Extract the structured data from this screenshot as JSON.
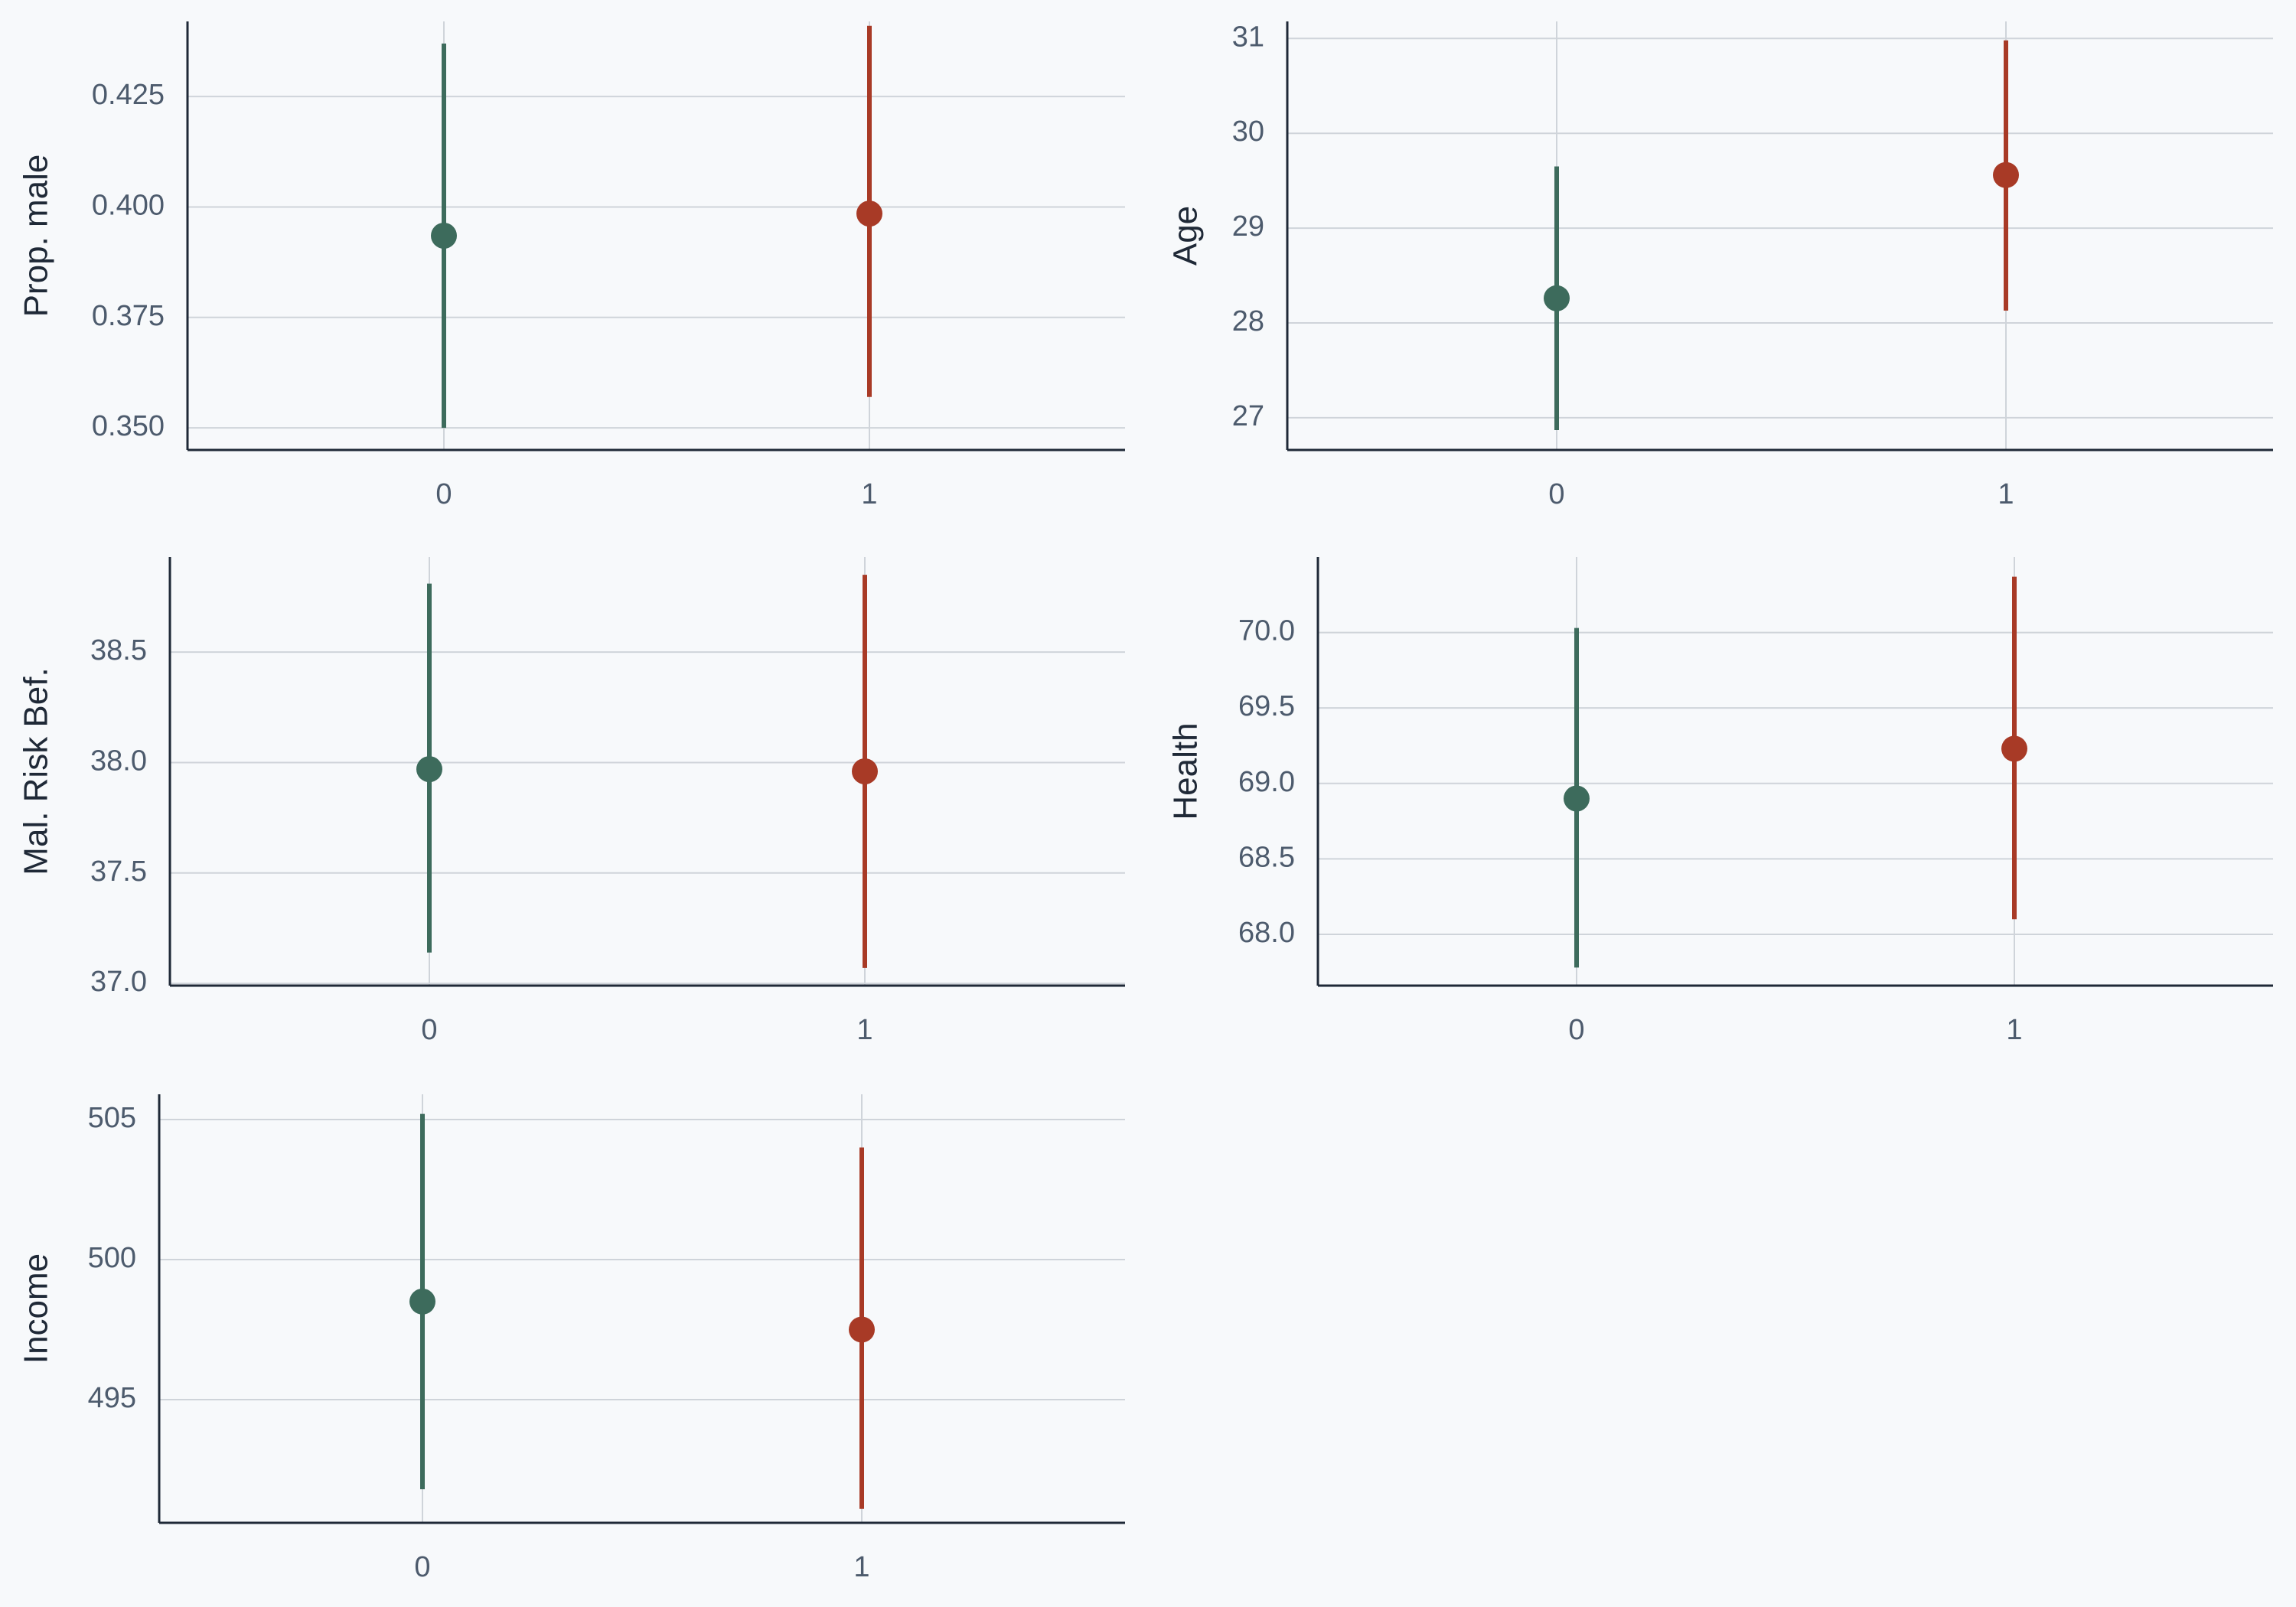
{
  "colors": {
    "background": "#f7f9fb",
    "group_0": "#3d6b5c",
    "group_1": "#a83a26",
    "grid": "#cfd4da",
    "axis": "#1f2937",
    "tick_text": "#4d5b6d",
    "label_text": "#1f2937"
  },
  "chart_data": [
    {
      "type": "scatter",
      "panel": "top-left",
      "ylabel": "Prop. male",
      "categories": [
        "0",
        "1"
      ],
      "ylim": [
        0.345,
        0.442
      ],
      "yticks": [
        0.35,
        0.375,
        0.4,
        0.425
      ],
      "ytick_labels": [
        "0.350",
        "0.375",
        "0.400",
        "0.425"
      ],
      "series": [
        {
          "category": "0",
          "estimate": 0.3935,
          "ci_low": 0.35,
          "ci_high": 0.437
        },
        {
          "category": "1",
          "estimate": 0.3985,
          "ci_low": 0.357,
          "ci_high": 0.441
        }
      ],
      "grid": true
    },
    {
      "type": "scatter",
      "panel": "top-right",
      "ylabel": "Age",
      "categories": [
        "0",
        "1"
      ],
      "ylim": [
        26.66,
        31.18
      ],
      "yticks": [
        27,
        28,
        29,
        30,
        31
      ],
      "ytick_labels": [
        "27",
        "28",
        "29",
        "30",
        "31"
      ],
      "series": [
        {
          "category": "0",
          "estimate": 28.26,
          "ci_low": 26.87,
          "ci_high": 29.65
        },
        {
          "category": "1",
          "estimate": 29.56,
          "ci_low": 28.13,
          "ci_high": 30.98
        }
      ],
      "grid": true
    },
    {
      "type": "scatter",
      "panel": "middle-left",
      "ylabel": "Mal. Risk Bef.",
      "categories": [
        "0",
        "1"
      ],
      "ylim": [
        36.99,
        38.93
      ],
      "yticks": [
        37.0,
        37.5,
        38.0,
        38.5
      ],
      "ytick_labels": [
        "37.0",
        "37.5",
        "38.0",
        "38.5"
      ],
      "series": [
        {
          "category": "0",
          "estimate": 37.97,
          "ci_low": 37.14,
          "ci_high": 38.81
        },
        {
          "category": "1",
          "estimate": 37.96,
          "ci_low": 37.07,
          "ci_high": 38.85
        }
      ],
      "grid": true
    },
    {
      "type": "scatter",
      "panel": "middle-right",
      "ylabel": "Health",
      "categories": [
        "0",
        "1"
      ],
      "ylim": [
        67.66,
        70.5
      ],
      "yticks": [
        68.0,
        68.5,
        69.0,
        69.5,
        70.0
      ],
      "ytick_labels": [
        "68.0",
        "68.5",
        "69.0",
        "69.5",
        "70.0"
      ],
      "series": [
        {
          "category": "0",
          "estimate": 68.9,
          "ci_low": 67.78,
          "ci_high": 70.03
        },
        {
          "category": "1",
          "estimate": 69.23,
          "ci_low": 68.1,
          "ci_high": 70.37
        }
      ],
      "grid": true
    },
    {
      "type": "scatter",
      "panel": "bottom-left",
      "ylabel": "Income",
      "categories": [
        "0",
        "1"
      ],
      "ylim": [
        490.6,
        505.9
      ],
      "yticks": [
        495,
        500,
        505
      ],
      "ytick_labels": [
        "495",
        "500",
        "505"
      ],
      "series": [
        {
          "category": "0",
          "estimate": 498.5,
          "ci_low": 491.8,
          "ci_high": 505.2
        },
        {
          "category": "1",
          "estimate": 497.5,
          "ci_low": 491.1,
          "ci_high": 504.0
        }
      ],
      "grid": true
    }
  ]
}
